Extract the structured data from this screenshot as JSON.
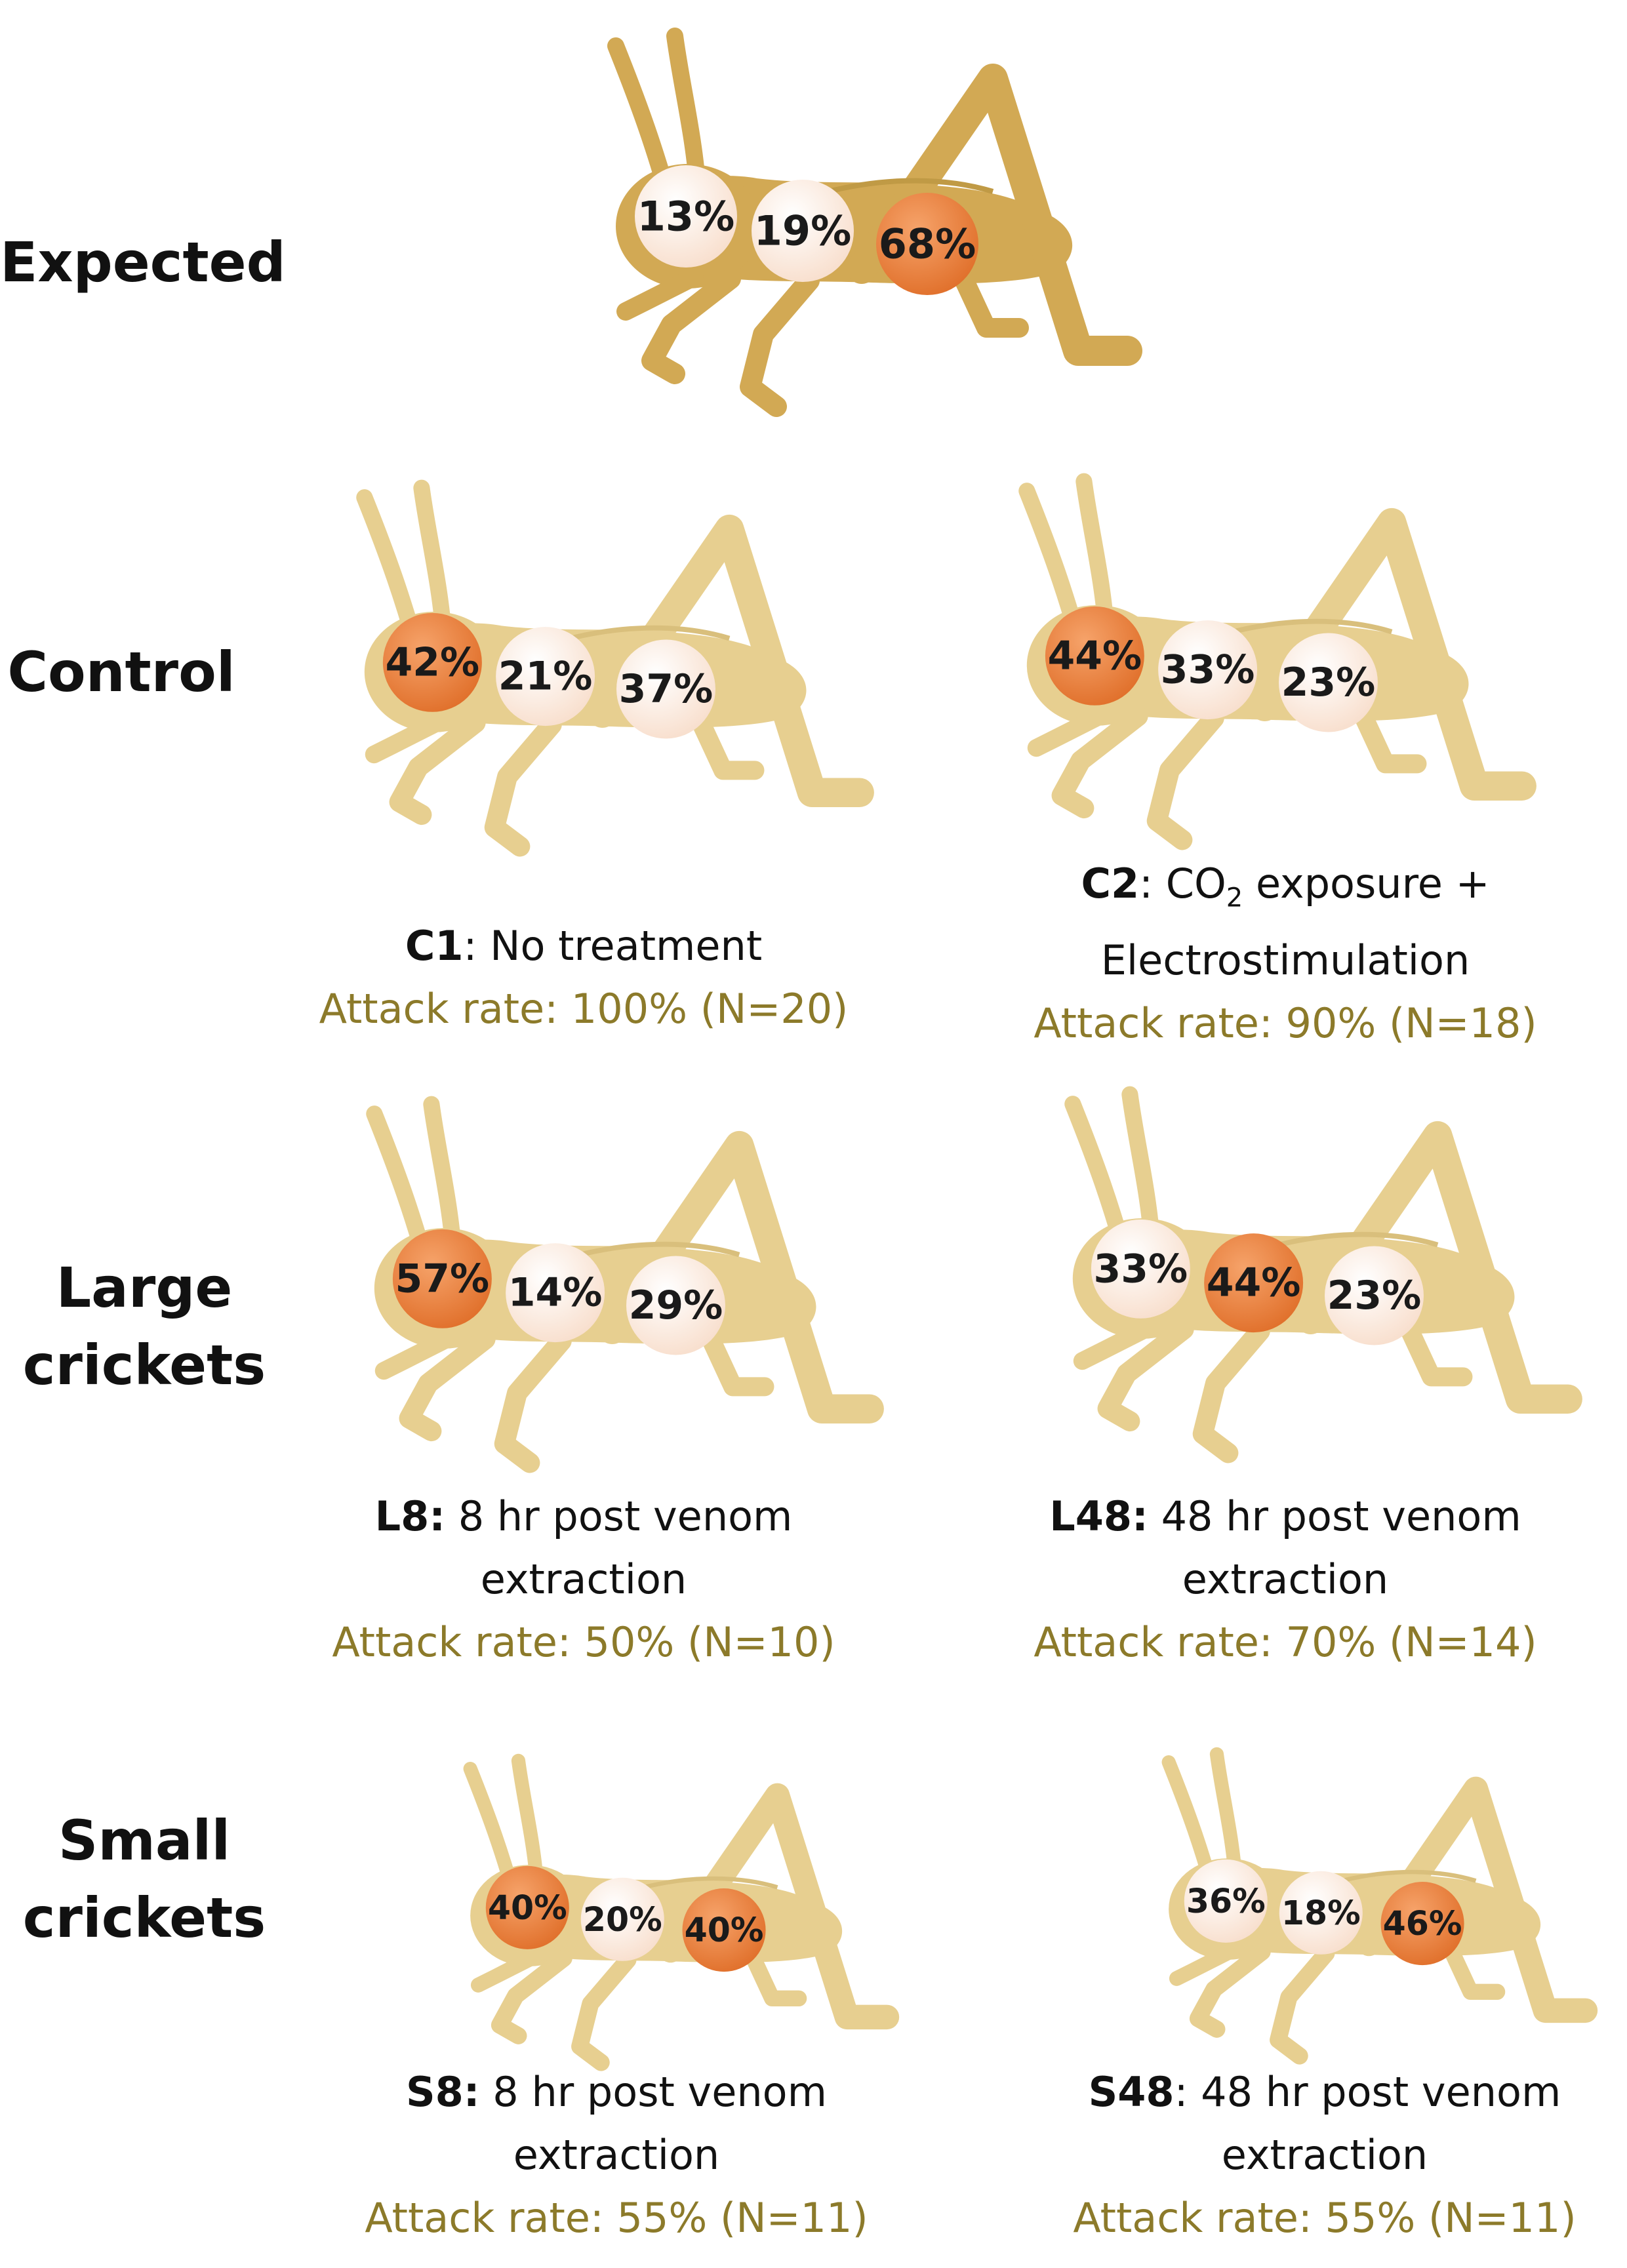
{
  "colors": {
    "expected_body": "#D2A954",
    "group_body": "#E7CF90",
    "dominant_circle": "#E06F2A",
    "light_circle": "#F8DECC",
    "attack_rate_text": "#8C7A2A"
  },
  "rows": {
    "expected": "Expected",
    "control": "Control",
    "large": [
      "Large",
      "crickets"
    ],
    "small": [
      "Small",
      "crickets"
    ]
  },
  "crickets": [
    {
      "id": "expected",
      "values": [
        "13%",
        "19%",
        "68%"
      ],
      "dominant": 2
    },
    {
      "id": "C1",
      "values": [
        "42%",
        "21%",
        "37%"
      ],
      "dominant": 0
    },
    {
      "id": "C2",
      "values": [
        "44%",
        "33%",
        "23%"
      ],
      "dominant": 0
    },
    {
      "id": "L8",
      "values": [
        "57%",
        "14%",
        "29%"
      ],
      "dominant": 0
    },
    {
      "id": "L48",
      "values": [
        "33%",
        "44%",
        "23%"
      ],
      "dominant": 1
    },
    {
      "id": "S8",
      "values": [
        "40%",
        "20%",
        "40%"
      ],
      "dominant": [
        0,
        2
      ]
    },
    {
      "id": "S48",
      "values": [
        "36%",
        "18%",
        "46%"
      ],
      "dominant": 2
    }
  ],
  "captions": {
    "C1": {
      "code": "C1",
      "desc": [
        "No treatment"
      ],
      "rate": "Attack rate: 100% (N=20)"
    },
    "C2": {
      "code": "C2",
      "desc_prefix": ": CO",
      "desc_sub": "2",
      "desc_suffix": " exposure +",
      "desc2": "Electrostimulation",
      "rate": "Attack rate: 90% (N=18)"
    },
    "L8": {
      "code": "L8:",
      "desc": [
        " 8 hr post venom",
        "extraction"
      ],
      "rate": "Attack rate: 50% (N=10)"
    },
    "L48": {
      "code": "L48:",
      "desc": [
        " 48 hr post venom",
        "extraction"
      ],
      "rate": "Attack rate: 70% (N=14)"
    },
    "S8": {
      "code": "S8:",
      "desc": [
        " 8 hr post venom",
        "extraction"
      ],
      "rate": "Attack rate: 55% (N=11)"
    },
    "S48": {
      "code": "S48",
      "desc": [
        ": 48 hr post venom",
        "extraction"
      ],
      "rate": "Attack rate: 55% (N=11)"
    }
  }
}
